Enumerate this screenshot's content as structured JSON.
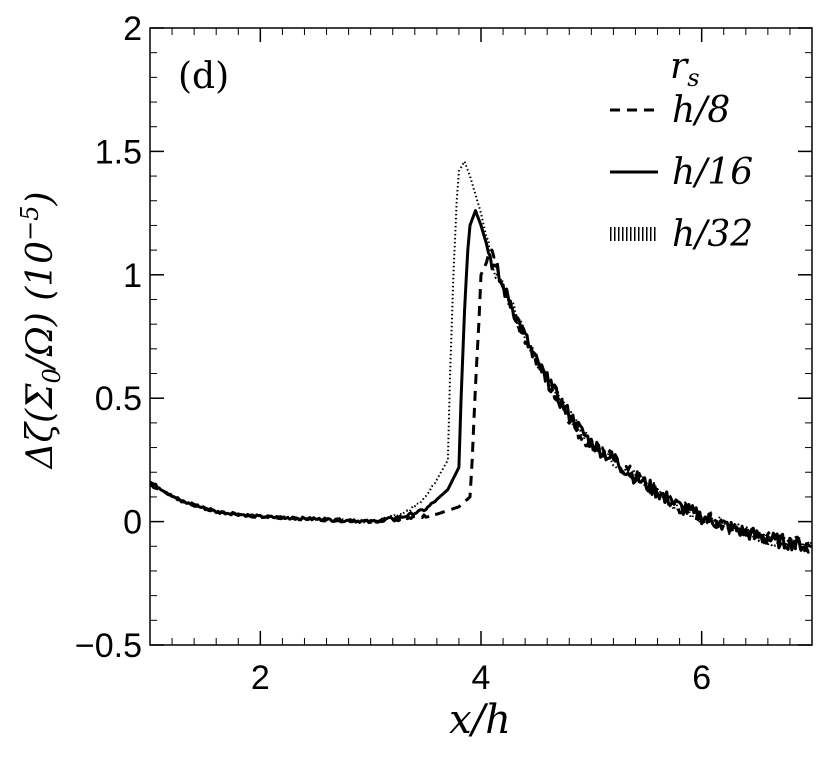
{
  "chart_data": {
    "type": "line",
    "panel_label": "(d)",
    "xlabel": "x/h",
    "ylabel_main": "Δζ(Σ",
    "ylabel_sub": "0",
    "ylabel_tail": "/Ω) (10",
    "ylabel_exp": "−5",
    "ylabel_close": ")",
    "xlim": [
      1,
      7
    ],
    "ylim": [
      -0.5,
      2
    ],
    "x_ticks": [
      2,
      4,
      6
    ],
    "x_tick_labels": [
      "2",
      "4",
      "6"
    ],
    "y_ticks": [
      -0.5,
      0,
      0.5,
      1,
      1.5,
      2
    ],
    "y_tick_labels": [
      "−0.5",
      "0",
      "0.5",
      "1",
      "1.5",
      "2"
    ],
    "legend_title": "r",
    "legend_title_sub": "s",
    "legend_position": "top-right",
    "series": [
      {
        "name": "h/8",
        "style": "dashed",
        "x": [
          1.0,
          1.3,
          1.6,
          2.0,
          2.5,
          3.0,
          3.3,
          3.6,
          3.8,
          3.9,
          3.92,
          3.95,
          3.98,
          4.0,
          4.1,
          4.2,
          4.35,
          4.5,
          4.7,
          4.9,
          5.0,
          5.2,
          5.4,
          5.6,
          5.8,
          6.0,
          6.3,
          6.6,
          7.0
        ],
        "y": [
          0.15,
          0.08,
          0.04,
          0.02,
          0.01,
          0.0,
          0.01,
          0.03,
          0.06,
          0.1,
          0.25,
          0.55,
          0.8,
          1.0,
          1.1,
          0.95,
          0.8,
          0.65,
          0.5,
          0.35,
          0.32,
          0.25,
          0.18,
          0.12,
          0.06,
          0.02,
          -0.03,
          -0.07,
          -0.1
        ]
      },
      {
        "name": "h/16",
        "style": "solid",
        "x": [
          1.0,
          1.3,
          1.6,
          2.0,
          2.5,
          3.0,
          3.3,
          3.5,
          3.7,
          3.8,
          3.82,
          3.85,
          3.88,
          3.9,
          3.95,
          4.0,
          4.1,
          4.2,
          4.35,
          4.5,
          4.7,
          4.9,
          5.0,
          5.2,
          5.4,
          5.6,
          5.8,
          6.0,
          6.3,
          6.6,
          7.0
        ],
        "y": [
          0.16,
          0.08,
          0.04,
          0.02,
          0.01,
          0.0,
          0.02,
          0.05,
          0.13,
          0.22,
          0.5,
          0.85,
          1.1,
          1.2,
          1.26,
          1.2,
          1.05,
          0.95,
          0.8,
          0.65,
          0.5,
          0.37,
          0.32,
          0.25,
          0.18,
          0.12,
          0.06,
          0.02,
          -0.03,
          -0.07,
          -0.1
        ]
      },
      {
        "name": "h/32",
        "style": "dotted",
        "x": [
          1.0,
          1.3,
          1.6,
          2.0,
          2.5,
          3.0,
          3.3,
          3.5,
          3.6,
          3.7,
          3.72,
          3.75,
          3.78,
          3.8,
          3.85,
          3.9,
          4.0,
          4.1,
          4.2,
          4.35,
          4.5,
          4.7,
          4.9,
          5.0,
          5.2,
          5.4,
          5.6,
          5.8,
          6.0,
          6.3,
          6.6,
          7.0
        ],
        "y": [
          0.15,
          0.08,
          0.04,
          0.02,
          0.01,
          0.0,
          0.03,
          0.1,
          0.17,
          0.25,
          0.6,
          1.0,
          1.3,
          1.42,
          1.46,
          1.4,
          1.25,
          1.05,
          0.95,
          0.8,
          0.65,
          0.5,
          0.37,
          0.32,
          0.25,
          0.18,
          0.12,
          0.06,
          0.02,
          -0.03,
          -0.07,
          -0.1
        ]
      }
    ]
  }
}
